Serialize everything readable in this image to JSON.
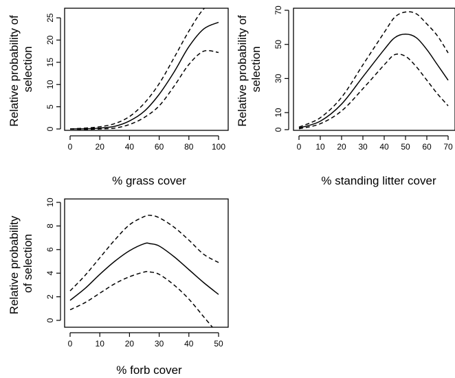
{
  "chart_data": [
    {
      "type": "line",
      "xlabel": "% grass cover",
      "ylabel": [
        "Relative probability of",
        "selection"
      ],
      "xlim": [
        0,
        100
      ],
      "ylim": [
        0,
        26
      ],
      "x_ticks": [
        0,
        20,
        40,
        60,
        80,
        100
      ],
      "y_ticks": [
        0,
        5,
        10,
        15,
        20,
        25
      ],
      "series": [
        {
          "style": "solid",
          "x": [
            0,
            10,
            20,
            30,
            40,
            50,
            60,
            70,
            80,
            90,
            100
          ],
          "y": [
            0.0,
            0.05,
            0.2,
            0.6,
            1.8,
            4.0,
            7.8,
            12.8,
            18.5,
            22.5,
            24.0
          ]
        },
        {
          "style": "dashed",
          "x": [
            0,
            10,
            20,
            30,
            40,
            50,
            60,
            70,
            80,
            90,
            100
          ],
          "y": [
            0.0,
            0.2,
            0.5,
            1.2,
            2.8,
            5.8,
            10.2,
            16.0,
            22.0,
            27.0,
            29.0
          ]
        },
        {
          "style": "dashed",
          "x": [
            0,
            10,
            20,
            30,
            40,
            50,
            60,
            70,
            80,
            90,
            100
          ],
          "y": [
            0.0,
            -0.1,
            0.0,
            0.2,
            1.0,
            2.6,
            5.2,
            9.6,
            14.5,
            17.5,
            17.2
          ]
        }
      ]
    },
    {
      "type": "line",
      "xlabel": "% standing litter cover",
      "ylabel": [
        "Relative probability of",
        "selection"
      ],
      "xlim": [
        0,
        70
      ],
      "ylim": [
        0,
        72
      ],
      "x_ticks": [
        0,
        10,
        20,
        30,
        40,
        50,
        60,
        70
      ],
      "y_ticks": [
        0,
        10,
        30,
        50,
        70
      ],
      "series": [
        {
          "style": "solid",
          "x": [
            0,
            10,
            20,
            30,
            40,
            45,
            50,
            55,
            60,
            65,
            70
          ],
          "y": [
            1,
            5,
            15,
            31,
            47,
            54,
            56,
            54,
            47,
            38,
            29
          ]
        },
        {
          "style": "dashed",
          "x": [
            0,
            10,
            20,
            30,
            40,
            45,
            50,
            55,
            60,
            65,
            70
          ],
          "y": [
            1.5,
            7,
            19,
            38,
            57,
            66,
            69,
            68,
            62,
            55,
            45
          ]
        },
        {
          "style": "dashed",
          "x": [
            0,
            10,
            20,
            30,
            40,
            45,
            50,
            55,
            60,
            65,
            70
          ],
          "y": [
            0.5,
            3.5,
            11,
            24,
            38,
            44,
            43,
            37,
            29,
            21,
            14
          ]
        }
      ]
    },
    {
      "type": "line",
      "xlabel": "% forb cover",
      "ylabel": [
        "Relative probability",
        "of selection"
      ],
      "xlim": [
        0,
        50
      ],
      "ylim": [
        0,
        10
      ],
      "x_ticks": [
        0,
        10,
        20,
        30,
        40,
        50
      ],
      "y_ticks": [
        0,
        2,
        4,
        6,
        8,
        10
      ],
      "series": [
        {
          "style": "solid",
          "x": [
            0,
            5,
            10,
            15,
            20,
            25,
            27,
            30,
            35,
            40,
            45,
            50
          ],
          "y": [
            1.7,
            2.7,
            3.9,
            5.0,
            5.9,
            6.5,
            6.5,
            6.3,
            5.4,
            4.3,
            3.2,
            2.2
          ]
        },
        {
          "style": "dashed",
          "x": [
            0,
            5,
            10,
            15,
            20,
            25,
            27,
            30,
            35,
            40,
            45,
            50
          ],
          "y": [
            2.5,
            3.8,
            5.3,
            6.8,
            8.1,
            8.8,
            8.9,
            8.7,
            7.9,
            6.8,
            5.6,
            4.9
          ]
        },
        {
          "style": "dashed",
          "x": [
            0,
            5,
            10,
            15,
            20,
            25,
            27,
            30,
            35,
            40,
            45,
            50
          ],
          "y": [
            0.9,
            1.5,
            2.3,
            3.1,
            3.7,
            4.1,
            4.1,
            3.9,
            3.0,
            1.8,
            0.3,
            -1.2
          ]
        }
      ]
    }
  ]
}
